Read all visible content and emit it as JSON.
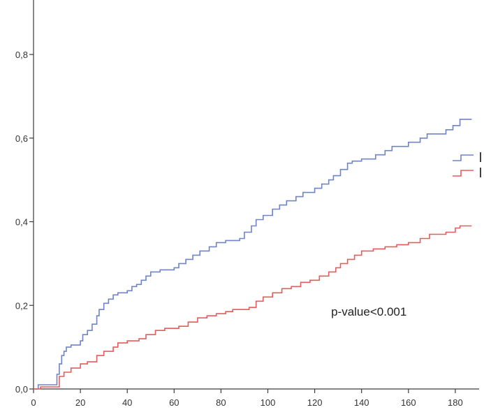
{
  "chart_data": {
    "type": "line",
    "step": true,
    "title": "",
    "xlabel": "",
    "ylabel": "",
    "xlim": [
      0,
      190
    ],
    "ylim": [
      0,
      1.0
    ],
    "x_ticks": [
      0,
      20,
      40,
      60,
      80,
      100,
      120,
      140,
      160,
      180
    ],
    "x_tick_labels": [
      "0",
      "20",
      "40",
      "60",
      "80",
      "100",
      "120",
      "140",
      "160",
      "180"
    ],
    "y_ticks": [
      0.0,
      0.2,
      0.4,
      0.6,
      0.8
    ],
    "y_tick_labels": [
      "0,0",
      "0,2",
      "0,4",
      "0,6",
      "0,8"
    ],
    "grid": false,
    "annotations": [
      {
        "text": "p-value<0.001",
        "x": 127,
        "y": 0.185
      }
    ],
    "series": [
      {
        "color": "#6f84c8",
        "points": [
          [
            0,
            0
          ],
          [
            2,
            0.01
          ],
          [
            9,
            0.01
          ],
          [
            10,
            0.035
          ],
          [
            11,
            0.06
          ],
          [
            12,
            0.08
          ],
          [
            13,
            0.09
          ],
          [
            14,
            0.1
          ],
          [
            16,
            0.105
          ],
          [
            20,
            0.115
          ],
          [
            21,
            0.13
          ],
          [
            23,
            0.14
          ],
          [
            25,
            0.155
          ],
          [
            27,
            0.175
          ],
          [
            28,
            0.19
          ],
          [
            30,
            0.205
          ],
          [
            32,
            0.215
          ],
          [
            34,
            0.225
          ],
          [
            36,
            0.23
          ],
          [
            40,
            0.235
          ],
          [
            42,
            0.245
          ],
          [
            44,
            0.25
          ],
          [
            46,
            0.26
          ],
          [
            48,
            0.27
          ],
          [
            50,
            0.28
          ],
          [
            54,
            0.285
          ],
          [
            60,
            0.29
          ],
          [
            62,
            0.3
          ],
          [
            65,
            0.31
          ],
          [
            68,
            0.32
          ],
          [
            71,
            0.33
          ],
          [
            75,
            0.34
          ],
          [
            78,
            0.35
          ],
          [
            82,
            0.355
          ],
          [
            88,
            0.36
          ],
          [
            90,
            0.375
          ],
          [
            93,
            0.39
          ],
          [
            95,
            0.405
          ],
          [
            98,
            0.415
          ],
          [
            102,
            0.43
          ],
          [
            105,
            0.44
          ],
          [
            108,
            0.45
          ],
          [
            112,
            0.46
          ],
          [
            115,
            0.47
          ],
          [
            120,
            0.48
          ],
          [
            123,
            0.49
          ],
          [
            126,
            0.5
          ],
          [
            128,
            0.51
          ],
          [
            131,
            0.525
          ],
          [
            134,
            0.54
          ],
          [
            136,
            0.545
          ],
          [
            140,
            0.55
          ],
          [
            146,
            0.56
          ],
          [
            150,
            0.57
          ],
          [
            153,
            0.58
          ],
          [
            160,
            0.59
          ],
          [
            165,
            0.6
          ],
          [
            168,
            0.61
          ],
          [
            176,
            0.62
          ],
          [
            179,
            0.63
          ],
          [
            182,
            0.645
          ],
          [
            187,
            0.645
          ]
        ]
      },
      {
        "color": "#e65c5c",
        "points": [
          [
            0,
            0
          ],
          [
            3,
            0.005
          ],
          [
            9,
            0.005
          ],
          [
            11,
            0.03
          ],
          [
            13,
            0.04
          ],
          [
            16,
            0.05
          ],
          [
            20,
            0.06
          ],
          [
            23,
            0.065
          ],
          [
            27,
            0.08
          ],
          [
            30,
            0.09
          ],
          [
            34,
            0.1
          ],
          [
            36,
            0.11
          ],
          [
            40,
            0.115
          ],
          [
            45,
            0.12
          ],
          [
            48,
            0.13
          ],
          [
            52,
            0.14
          ],
          [
            56,
            0.145
          ],
          [
            62,
            0.15
          ],
          [
            66,
            0.16
          ],
          [
            70,
            0.17
          ],
          [
            74,
            0.175
          ],
          [
            78,
            0.18
          ],
          [
            82,
            0.185
          ],
          [
            85,
            0.19
          ],
          [
            92,
            0.195
          ],
          [
            95,
            0.21
          ],
          [
            98,
            0.22
          ],
          [
            102,
            0.23
          ],
          [
            106,
            0.24
          ],
          [
            110,
            0.245
          ],
          [
            114,
            0.255
          ],
          [
            118,
            0.26
          ],
          [
            122,
            0.27
          ],
          [
            126,
            0.28
          ],
          [
            129,
            0.29
          ],
          [
            131,
            0.3
          ],
          [
            134,
            0.31
          ],
          [
            137,
            0.32
          ],
          [
            140,
            0.33
          ],
          [
            145,
            0.335
          ],
          [
            150,
            0.34
          ],
          [
            155,
            0.345
          ],
          [
            160,
            0.35
          ],
          [
            165,
            0.36
          ],
          [
            169,
            0.37
          ],
          [
            176,
            0.375
          ],
          [
            180,
            0.385
          ],
          [
            182,
            0.39
          ],
          [
            187,
            0.39
          ]
        ]
      }
    ]
  }
}
